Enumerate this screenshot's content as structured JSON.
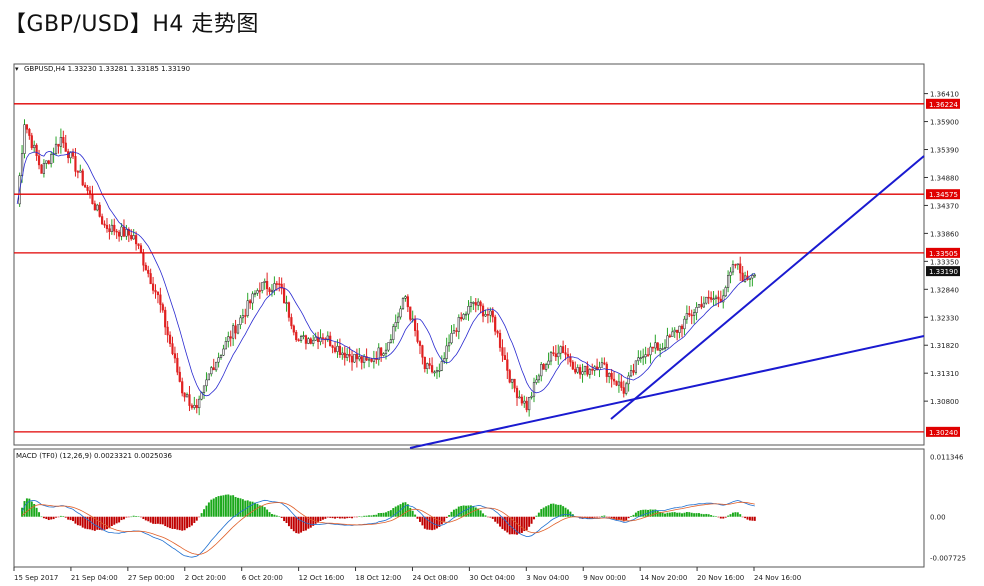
{
  "page": {
    "headline": "【GBP/USD】H4 走势图"
  },
  "colors": {
    "bull": "#f2f2f2",
    "bull_outline": "#1a1a1a",
    "bear": "#e02020",
    "up_wick": "#2aa52a",
    "down_wick": "#e02020",
    "ma": "#2a2ad0",
    "level": "#e00000",
    "trend": "#1a1ad0",
    "macd_pos": "#1aa81a",
    "macd_neg": "#c00000",
    "macd_line_a": "#1e6fd0",
    "macd_line_b": "#e0602a"
  },
  "chart_data": [
    {
      "type": "candlestick",
      "symbol_info": "GBPUSD,H4  1.33230 1.33281 1.33185 1.33190",
      "ylim": [
        1.3,
        1.3695
      ],
      "y_ticks": [
        "1.36410",
        "1.35900",
        "1.35390",
        "1.34880",
        "1.34370",
        "1.33860",
        "1.33350",
        "1.32840",
        "1.32330",
        "1.31820",
        "1.31310",
        "1.30800"
      ],
      "x_tick_labels": [
        "15 Sep 2017",
        "21 Sep 04:00",
        "27 Sep 00:00",
        "2 Oct 20:00",
        "6 Oct 20:00",
        "12 Oct 16:00",
        "18 Oct 12:00",
        "24 Oct 08:00",
        "30 Oct 04:00",
        "3 Nov 04:00",
        "9 Nov 00:00",
        "14 Nov 20:00",
        "20 Nov 16:00",
        "24 Nov 16:00"
      ],
      "current_price": "1.33190",
      "horizontal_levels": [
        {
          "label": "1.36224",
          "value": 1.36224
        },
        {
          "label": "1.34575",
          "value": 1.34575
        },
        {
          "label": "1.33505",
          "value": 1.33505
        },
        {
          "label": "1.30240",
          "value": 1.3024
        }
      ],
      "close_path_keypoints": [
        [
          0,
          1.344
        ],
        [
          3,
          1.359
        ],
        [
          10,
          1.35
        ],
        [
          18,
          1.356
        ],
        [
          26,
          1.349
        ],
        [
          36,
          1.34
        ],
        [
          48,
          1.338
        ],
        [
          58,
          1.327
        ],
        [
          68,
          1.31
        ],
        [
          74,
          1.306
        ],
        [
          80,
          1.314
        ],
        [
          92,
          1.323
        ],
        [
          100,
          1.329
        ],
        [
          108,
          1.329
        ],
        [
          116,
          1.319
        ],
        [
          126,
          1.32
        ],
        [
          134,
          1.317
        ],
        [
          144,
          1.315
        ],
        [
          152,
          1.318
        ],
        [
          160,
          1.327
        ],
        [
          168,
          1.314
        ],
        [
          174,
          1.313
        ],
        [
          180,
          1.321
        ],
        [
          188,
          1.326
        ],
        [
          196,
          1.323
        ],
        [
          204,
          1.311
        ],
        [
          210,
          1.307
        ],
        [
          216,
          1.314
        ],
        [
          224,
          1.318
        ],
        [
          232,
          1.313
        ],
        [
          240,
          1.315
        ],
        [
          250,
          1.31
        ],
        [
          258,
          1.317
        ],
        [
          266,
          1.318
        ],
        [
          274,
          1.322
        ],
        [
          282,
          1.326
        ],
        [
          290,
          1.327
        ],
        [
          296,
          1.333
        ],
        [
          300,
          1.33
        ],
        [
          304,
          1.332
        ]
      ]
    },
    {
      "type": "macd",
      "label": "MACD (TF0)  (12,26,9)  0.0023321  0.0025036",
      "ylim": [
        -0.0095,
        0.0128
      ],
      "y_ticks": [
        "0.011346",
        "0.00",
        "-0.007725"
      ]
    }
  ]
}
